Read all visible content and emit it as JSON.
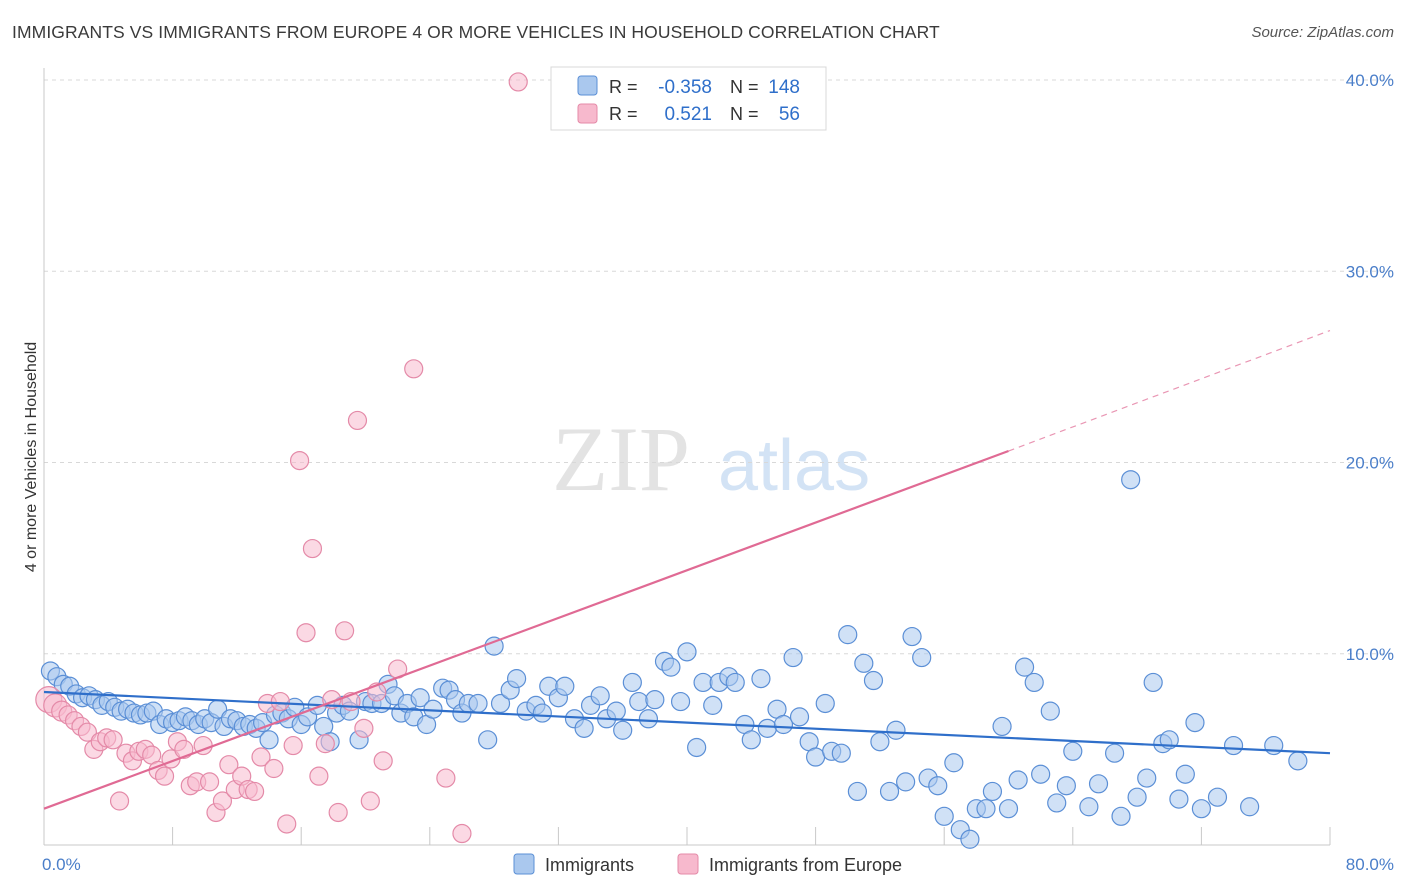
{
  "title": "IMMIGRANTS VS IMMIGRANTS FROM EUROPE 4 OR MORE VEHICLES IN HOUSEHOLD CORRELATION CHART",
  "source": "Source: ZipAtlas.com",
  "watermark": {
    "zip": "ZIP",
    "atlas": "atlas"
  },
  "legend_stats": [
    {
      "r_label": "R =",
      "r_value": "-0.358",
      "n_label": "N =",
      "n_value": "148"
    },
    {
      "r_label": "R =",
      "r_value": "0.521",
      "n_label": "N =",
      "n_value": "56"
    }
  ],
  "colors": {
    "blue_fill": "#aac8ee",
    "blue_stroke": "#5b8fd6",
    "blue_line": "#2f6fca",
    "pink_fill": "#f7b9cd",
    "pink_stroke": "#e48aa8",
    "pink_line": "#e06a94",
    "grid": "#d8d8d8",
    "tick_text": "#4a7ec9"
  },
  "chart_data": {
    "type": "scatter",
    "ylabel": "4 or more Vehicles in Household",
    "xlim": [
      0,
      80
    ],
    "ylim": [
      0,
      40
    ],
    "x_tick_labels": [
      "0.0%",
      "80.0%"
    ],
    "y_ticks": [
      10,
      20,
      30,
      40
    ],
    "y_tick_labels": [
      "10.0%",
      "20.0%",
      "30.0%",
      "40.0%"
    ],
    "grid": true,
    "series": [
      {
        "name": "Immigrants",
        "trend": {
          "x0": 0,
          "y0": 8.0,
          "x1": 80,
          "y1": 4.8
        },
        "points": [
          [
            0.4,
            9.1
          ],
          [
            0.8,
            8.8
          ],
          [
            1.2,
            8.4
          ],
          [
            1.6,
            8.3
          ],
          [
            2.0,
            7.9
          ],
          [
            2.4,
            7.7
          ],
          [
            2.8,
            7.8
          ],
          [
            3.2,
            7.6
          ],
          [
            3.6,
            7.3
          ],
          [
            4.0,
            7.5
          ],
          [
            4.4,
            7.2
          ],
          [
            4.8,
            7.0
          ],
          [
            5.2,
            7.1
          ],
          [
            5.6,
            6.9
          ],
          [
            6.0,
            6.8
          ],
          [
            6.4,
            6.9
          ],
          [
            6.8,
            7.0
          ],
          [
            7.2,
            6.3
          ],
          [
            7.6,
            6.6
          ],
          [
            8.0,
            6.4
          ],
          [
            8.4,
            6.5
          ],
          [
            8.8,
            6.7
          ],
          [
            9.2,
            6.5
          ],
          [
            9.6,
            6.3
          ],
          [
            10.0,
            6.6
          ],
          [
            10.4,
            6.4
          ],
          [
            10.8,
            7.1
          ],
          [
            11.2,
            6.2
          ],
          [
            11.6,
            6.6
          ],
          [
            12.0,
            6.5
          ],
          [
            12.4,
            6.2
          ],
          [
            12.8,
            6.3
          ],
          [
            13.2,
            6.1
          ],
          [
            13.6,
            6.4
          ],
          [
            14.0,
            5.5
          ],
          [
            14.4,
            6.8
          ],
          [
            14.8,
            6.9
          ],
          [
            15.2,
            6.6
          ],
          [
            15.6,
            7.2
          ],
          [
            16.0,
            6.3
          ],
          [
            16.4,
            6.7
          ],
          [
            17.0,
            7.3
          ],
          [
            17.4,
            6.2
          ],
          [
            17.8,
            5.4
          ],
          [
            18.2,
            6.9
          ],
          [
            18.6,
            7.3
          ],
          [
            19.0,
            7.0
          ],
          [
            19.6,
            5.5
          ],
          [
            20.0,
            7.5
          ],
          [
            20.4,
            7.4
          ],
          [
            21.0,
            7.4
          ],
          [
            21.4,
            8.4
          ],
          [
            21.8,
            7.8
          ],
          [
            22.2,
            6.9
          ],
          [
            22.6,
            7.4
          ],
          [
            23.0,
            6.7
          ],
          [
            23.4,
            7.7
          ],
          [
            23.8,
            6.3
          ],
          [
            24.2,
            7.1
          ],
          [
            24.8,
            8.2
          ],
          [
            25.2,
            8.1
          ],
          [
            25.6,
            7.6
          ],
          [
            26.0,
            6.9
          ],
          [
            26.4,
            7.4
          ],
          [
            27.0,
            7.4
          ],
          [
            27.6,
            5.5
          ],
          [
            28.0,
            10.4
          ],
          [
            28.4,
            7.4
          ],
          [
            29.0,
            8.1
          ],
          [
            29.4,
            8.7
          ],
          [
            30.0,
            7.0
          ],
          [
            30.6,
            7.3
          ],
          [
            31.0,
            6.9
          ],
          [
            31.4,
            8.3
          ],
          [
            32.0,
            7.7
          ],
          [
            32.4,
            8.3
          ],
          [
            33.0,
            6.6
          ],
          [
            33.6,
            6.1
          ],
          [
            34.0,
            7.3
          ],
          [
            34.6,
            7.8
          ],
          [
            35.0,
            6.6
          ],
          [
            35.6,
            7.0
          ],
          [
            36.0,
            6.0
          ],
          [
            36.6,
            8.5
          ],
          [
            37.0,
            7.5
          ],
          [
            37.6,
            6.6
          ],
          [
            38.0,
            7.6
          ],
          [
            38.6,
            9.6
          ],
          [
            39.0,
            9.3
          ],
          [
            39.6,
            7.5
          ],
          [
            40.0,
            10.1
          ],
          [
            40.6,
            5.1
          ],
          [
            41.0,
            8.5
          ],
          [
            41.6,
            7.3
          ],
          [
            42.0,
            8.5
          ],
          [
            42.6,
            8.8
          ],
          [
            43.0,
            8.5
          ],
          [
            43.6,
            6.3
          ],
          [
            44.0,
            5.5
          ],
          [
            44.6,
            8.7
          ],
          [
            45.0,
            6.1
          ],
          [
            45.6,
            7.1
          ],
          [
            46.0,
            6.3
          ],
          [
            46.6,
            9.8
          ],
          [
            47.0,
            6.7
          ],
          [
            47.6,
            5.4
          ],
          [
            48.0,
            4.6
          ],
          [
            48.6,
            7.4
          ],
          [
            49.0,
            4.9
          ],
          [
            49.6,
            4.8
          ],
          [
            50.0,
            11.0
          ],
          [
            50.6,
            2.8
          ],
          [
            51.0,
            9.5
          ],
          [
            51.6,
            8.6
          ],
          [
            52.0,
            5.4
          ],
          [
            52.6,
            2.8
          ],
          [
            53.0,
            6.0
          ],
          [
            53.6,
            3.3
          ],
          [
            54.0,
            10.9
          ],
          [
            54.6,
            9.8
          ],
          [
            55.0,
            3.5
          ],
          [
            55.6,
            3.1
          ],
          [
            56.0,
            1.5
          ],
          [
            56.6,
            4.3
          ],
          [
            57.0,
            0.8
          ],
          [
            57.6,
            0.3
          ],
          [
            58.0,
            1.9
          ],
          [
            58.6,
            1.9
          ],
          [
            59.0,
            2.8
          ],
          [
            59.6,
            6.2
          ],
          [
            60.0,
            1.9
          ],
          [
            60.6,
            3.4
          ],
          [
            61.0,
            9.3
          ],
          [
            61.6,
            8.5
          ],
          [
            62.0,
            3.7
          ],
          [
            62.6,
            7.0
          ],
          [
            63.0,
            2.2
          ],
          [
            63.6,
            3.1
          ],
          [
            64.0,
            4.9
          ],
          [
            65.0,
            2.0
          ],
          [
            65.6,
            3.2
          ],
          [
            66.6,
            4.8
          ],
          [
            67.0,
            1.5
          ],
          [
            67.6,
            19.1
          ],
          [
            68.0,
            2.5
          ],
          [
            68.6,
            3.5
          ],
          [
            69.0,
            8.5
          ],
          [
            69.6,
            5.3
          ],
          [
            70.0,
            5.5
          ],
          [
            70.6,
            2.4
          ],
          [
            71.0,
            3.7
          ],
          [
            71.6,
            6.4
          ],
          [
            72.0,
            1.9
          ],
          [
            73.0,
            2.5
          ],
          [
            74.0,
            5.2
          ],
          [
            75.0,
            2.0
          ],
          [
            76.5,
            5.2
          ],
          [
            78.0,
            4.4
          ]
        ]
      },
      {
        "name": "Immigrants from Europe",
        "trend": {
          "x0": 0,
          "y0": 1.9,
          "x1": 60,
          "y1": 20.6,
          "dash_x1": 80,
          "dash_y1": 26.9
        },
        "points": [
          [
            0.3,
            7.6
          ],
          [
            0.7,
            7.3
          ],
          [
            1.1,
            7.0
          ],
          [
            1.5,
            6.8
          ],
          [
            1.9,
            6.5
          ],
          [
            2.3,
            6.2
          ],
          [
            2.7,
            5.9
          ],
          [
            3.1,
            5.0
          ],
          [
            3.5,
            5.4
          ],
          [
            3.9,
            5.6
          ],
          [
            4.3,
            5.5
          ],
          [
            4.7,
            2.3
          ],
          [
            5.1,
            4.8
          ],
          [
            5.5,
            4.4
          ],
          [
            5.9,
            4.9
          ],
          [
            6.3,
            5.0
          ],
          [
            6.7,
            4.7
          ],
          [
            7.1,
            3.9
          ],
          [
            7.5,
            3.6
          ],
          [
            7.9,
            4.5
          ],
          [
            8.3,
            5.4
          ],
          [
            8.7,
            5.0
          ],
          [
            9.1,
            3.1
          ],
          [
            9.5,
            3.3
          ],
          [
            9.9,
            5.2
          ],
          [
            10.3,
            3.3
          ],
          [
            10.7,
            1.7
          ],
          [
            11.1,
            2.3
          ],
          [
            11.5,
            4.2
          ],
          [
            11.9,
            2.9
          ],
          [
            12.3,
            3.6
          ],
          [
            12.7,
            2.9
          ],
          [
            13.1,
            2.8
          ],
          [
            13.5,
            4.6
          ],
          [
            13.9,
            7.4
          ],
          [
            14.3,
            4.0
          ],
          [
            14.7,
            7.5
          ],
          [
            15.1,
            1.1
          ],
          [
            15.5,
            5.2
          ],
          [
            15.9,
            20.1
          ],
          [
            16.3,
            11.1
          ],
          [
            16.7,
            15.5
          ],
          [
            17.1,
            3.6
          ],
          [
            17.5,
            5.3
          ],
          [
            17.9,
            7.6
          ],
          [
            18.3,
            1.7
          ],
          [
            18.7,
            11.2
          ],
          [
            19.1,
            7.5
          ],
          [
            19.5,
            22.2
          ],
          [
            19.9,
            6.1
          ],
          [
            20.3,
            2.3
          ],
          [
            20.7,
            8.0
          ],
          [
            21.1,
            4.4
          ],
          [
            22.0,
            9.2
          ],
          [
            23.0,
            24.9
          ],
          [
            25.0,
            3.5
          ],
          [
            26.0,
            0.6
          ],
          [
            29.5,
            39.9
          ]
        ]
      }
    ]
  },
  "bottom_legend": [
    {
      "label": "Immigrants"
    },
    {
      "label": "Immigrants from Europe"
    }
  ]
}
